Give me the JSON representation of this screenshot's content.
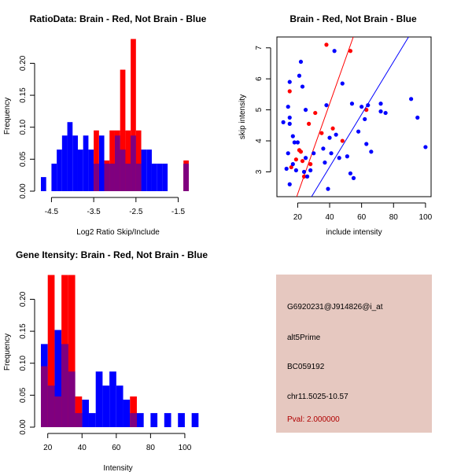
{
  "colors": {
    "red": "#ff0000",
    "blue": "#0000ff",
    "overlap": "#7f007f",
    "panel_bg": "#e6c8c0",
    "pval": "#b00000"
  },
  "chart_data": [
    {
      "type": "histogram",
      "title": "RatioData: Brain - Red, Not Brain - Blue",
      "xlabel": "Log2 Ratio Skip/Include",
      "ylabel": "Frequency",
      "xlim": [
        -4.75,
        -1.1
      ],
      "ylim": [
        0,
        0.235
      ],
      "xticks": [
        -4.5,
        -3.5,
        -2.5,
        -1.5
      ],
      "xtick_labels": [
        "-4.5",
        "-3.5",
        "-2.5",
        "-1.5"
      ],
      "yticks": [
        0,
        0.05,
        0.1,
        0.15,
        0.2
      ],
      "ytick_labels": [
        "0.00",
        "0.05",
        "0.10",
        "0.15",
        "0.20"
      ],
      "bin_width": 0.125,
      "series": [
        {
          "name": "Not Brain",
          "color": "blue",
          "bins": [
            [
              -4.75,
              0.022
            ],
            [
              -4.5,
              0.043
            ],
            [
              -4.375,
              0.065
            ],
            [
              -4.25,
              0.087
            ],
            [
              -4.125,
              0.108
            ],
            [
              -4.0,
              0.087
            ],
            [
              -3.875,
              0.065
            ],
            [
              -3.75,
              0.087
            ],
            [
              -3.625,
              0.065
            ],
            [
              -3.5,
              0.043
            ],
            [
              -3.375,
              0.087
            ],
            [
              -3.25,
              0.043
            ],
            [
              -3.125,
              0.043
            ],
            [
              -3.0,
              0.087
            ],
            [
              -2.875,
              0.065
            ],
            [
              -2.75,
              0.043
            ],
            [
              -2.625,
              0.087
            ],
            [
              -2.5,
              0.043
            ],
            [
              -2.375,
              0.065
            ],
            [
              -2.25,
              0.065
            ],
            [
              -2.125,
              0.043
            ],
            [
              -2.0,
              0.043
            ],
            [
              -1.875,
              0.043
            ],
            [
              -1.375,
              0.043
            ]
          ]
        },
        {
          "name": "Brain",
          "color": "red",
          "bins": [
            [
              -3.5,
              0.095
            ],
            [
              -3.25,
              0.048
            ],
            [
              -3.125,
              0.095
            ],
            [
              -3.0,
              0.095
            ],
            [
              -2.875,
              0.19
            ],
            [
              -2.75,
              0.095
            ],
            [
              -2.625,
              0.238
            ],
            [
              -2.5,
              0.095
            ],
            [
              -1.375,
              0.048
            ]
          ]
        }
      ]
    },
    {
      "type": "scatter",
      "title": "Brain - Red, Not Brain - Blue",
      "xlabel": "include intensity",
      "ylabel": "skip intensity",
      "xlim": [
        7,
        103.5
      ],
      "ylim": [
        2.2,
        7.35
      ],
      "xticks": [
        20,
        40,
        60,
        80,
        100
      ],
      "xtick_labels": [
        "20",
        "40",
        "60",
        "80",
        "100"
      ],
      "yticks": [
        3,
        4,
        5,
        6,
        7
      ],
      "ytick_labels": [
        "3",
        "4",
        "5",
        "6",
        "7"
      ],
      "series": [
        {
          "name": "Brain",
          "color": "red",
          "points": [
            [
              38,
              7.1
            ],
            [
              53,
              6.9
            ],
            [
              15,
              5.6
            ],
            [
              63,
              5.0
            ],
            [
              31,
              4.9
            ],
            [
              42,
              4.4
            ],
            [
              27,
              4.55
            ],
            [
              35,
              4.25
            ],
            [
              48,
              4.0
            ],
            [
              19,
              3.4
            ],
            [
              21,
              3.7
            ],
            [
              23,
              3.35
            ],
            [
              28,
              3.25
            ],
            [
              16,
              3.15
            ],
            [
              24,
              2.85
            ],
            [
              22,
              3.65
            ]
          ],
          "fit": [
            [
              19.4,
              2.2
            ],
            [
              54.8,
              7.35
            ]
          ]
        },
        {
          "name": "Not Brain",
          "color": "blue",
          "points": [
            [
              43,
              6.9
            ],
            [
              22,
              6.55
            ],
            [
              15,
              5.9
            ],
            [
              21,
              6.1
            ],
            [
              38,
              5.15
            ],
            [
              23,
              5.75
            ],
            [
              14,
              5.1
            ],
            [
              25,
              5.0
            ],
            [
              15,
              4.75
            ],
            [
              15,
              4.55
            ],
            [
              11,
              4.6
            ],
            [
              48,
              5.85
            ],
            [
              54,
              5.2
            ],
            [
              60,
              5.1
            ],
            [
              64,
              5.15
            ],
            [
              72,
              5.2
            ],
            [
              72,
              4.95
            ],
            [
              75,
              4.9
            ],
            [
              91,
              5.35
            ],
            [
              95,
              4.75
            ],
            [
              100,
              3.8
            ],
            [
              58,
              4.3
            ],
            [
              62,
              4.7
            ],
            [
              63,
              3.9
            ],
            [
              66,
              3.65
            ],
            [
              51,
              3.5
            ],
            [
              41,
              3.6
            ],
            [
              46,
              3.45
            ],
            [
              36,
              3.75
            ],
            [
              30,
              3.6
            ],
            [
              25,
              3.45
            ],
            [
              18,
              3.95
            ],
            [
              20,
              3.95
            ],
            [
              17,
              4.15
            ],
            [
              17,
              3.25
            ],
            [
              19,
              3.05
            ],
            [
              24,
              3.0
            ],
            [
              28,
              3.05
            ],
            [
              37,
              3.3
            ],
            [
              40,
              4.1
            ],
            [
              44,
              4.2
            ],
            [
              15,
              2.6
            ],
            [
              26,
              2.85
            ],
            [
              39,
              2.45
            ],
            [
              53,
              2.95
            ],
            [
              55,
              2.8
            ],
            [
              13,
              3.1
            ],
            [
              14,
              3.6
            ]
          ],
          "fit": [
            [
              28.7,
              2.2
            ],
            [
              89.4,
              7.35
            ]
          ]
        }
      ]
    },
    {
      "type": "histogram",
      "title": "Gene Itensity: Brain - Red, Not Brain - Blue",
      "xlabel": "Intensity",
      "ylabel": "Frequency",
      "xlim": [
        16,
        106
      ],
      "ylim": [
        0,
        0.235
      ],
      "xticks": [
        20,
        40,
        60,
        80,
        100
      ],
      "xtick_labels": [
        "20",
        "40",
        "60",
        "80",
        "100"
      ],
      "yticks": [
        0,
        0.05,
        0.1,
        0.15,
        0.2
      ],
      "ytick_labels": [
        "0.00",
        "0.05",
        "0.10",
        "0.15",
        "0.20"
      ],
      "bin_width": 4,
      "series": [
        {
          "name": "Not Brain",
          "color": "blue",
          "bins": [
            [
              16,
              0.13
            ],
            [
              20,
              0.065
            ],
            [
              24,
              0.152
            ],
            [
              28,
              0.13
            ],
            [
              32,
              0.087
            ],
            [
              36,
              0.022
            ],
            [
              40,
              0.043
            ],
            [
              44,
              0.022
            ],
            [
              48,
              0.087
            ],
            [
              52,
              0.065
            ],
            [
              56,
              0.087
            ],
            [
              60,
              0.065
            ],
            [
              64,
              0.043
            ],
            [
              68,
              0.022
            ],
            [
              72,
              0.022
            ],
            [
              80,
              0.022
            ],
            [
              88,
              0.022
            ],
            [
              96,
              0.022
            ],
            [
              104,
              0.022
            ]
          ]
        },
        {
          "name": "Brain",
          "color": "red",
          "bins": [
            [
              16,
              0.095
            ],
            [
              20,
              0.238
            ],
            [
              24,
              0.048
            ],
            [
              28,
              0.238
            ],
            [
              32,
              0.238
            ],
            [
              36,
              0.048
            ],
            [
              68,
              0.048
            ]
          ]
        }
      ]
    }
  ],
  "info": {
    "probe_id": "G6920231@J914826@i_at",
    "event_type": "alt5Prime",
    "accession": "BC059192",
    "location": "chr11.5025-10.57",
    "pval": "Pval: 2.000000"
  }
}
